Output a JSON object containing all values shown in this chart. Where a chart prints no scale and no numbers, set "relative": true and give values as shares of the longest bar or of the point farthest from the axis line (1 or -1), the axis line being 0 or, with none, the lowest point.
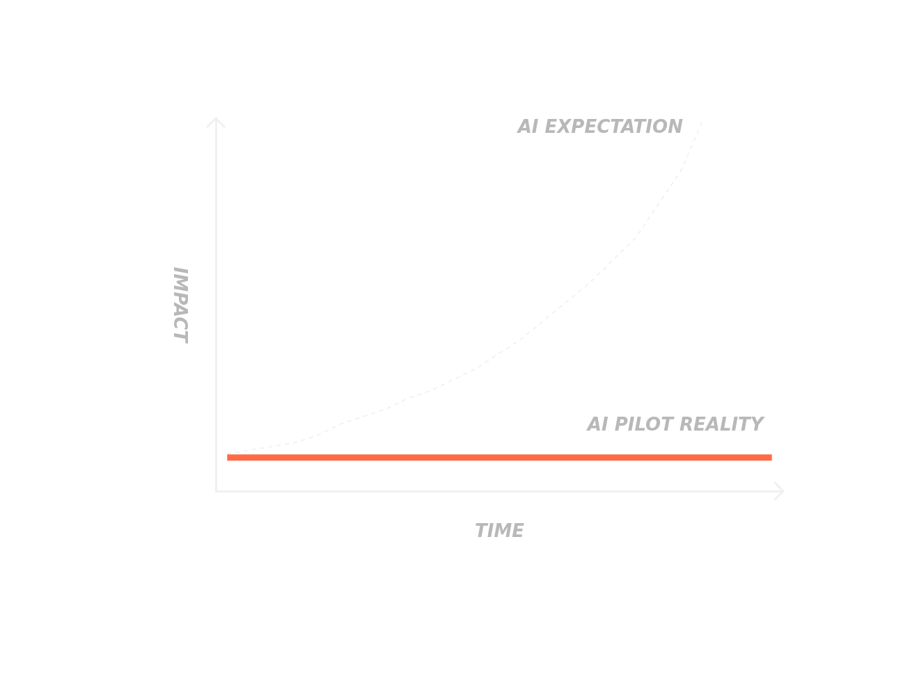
{
  "chart_data": {
    "type": "line",
    "relative": true,
    "xlabel": "TIME",
    "ylabel": "IMPACT",
    "legend": false,
    "grid": false,
    "marker": "none",
    "categories": [
      null,
      null,
      null,
      null,
      null,
      null,
      null,
      null,
      null,
      null,
      null,
      null,
      null,
      null,
      null,
      null,
      null,
      null,
      null,
      null,
      null,
      null,
      null,
      null,
      null
    ],
    "series": [
      {
        "name": "AI EXPECTATION",
        "color": "#eeeeee",
        "line_style": "dashed",
        "values": [
          0.1,
          0.11,
          0.12,
          0.13,
          0.15,
          0.18,
          0.2,
          0.22,
          0.25,
          0.27,
          0.3,
          0.33,
          0.37,
          0.41,
          0.46,
          0.51,
          0.56,
          0.62,
          0.68,
          0.77,
          0.86,
          1,
          null,
          null,
          null
        ]
      },
      {
        "name": "AI PILOT REALITY",
        "color": "#ff6b45",
        "line_style": "solid",
        "values": [
          0.09,
          0.09,
          0.09,
          0.09,
          0.09,
          0.09,
          0.09,
          0.09,
          0.09,
          0.09,
          0.09,
          0.09,
          0.09,
          0.09,
          0.09,
          0.09,
          0.09,
          0.09,
          0.09,
          0.09,
          0.09,
          0.09,
          0.09,
          0.09,
          0.09
        ]
      }
    ]
  }
}
